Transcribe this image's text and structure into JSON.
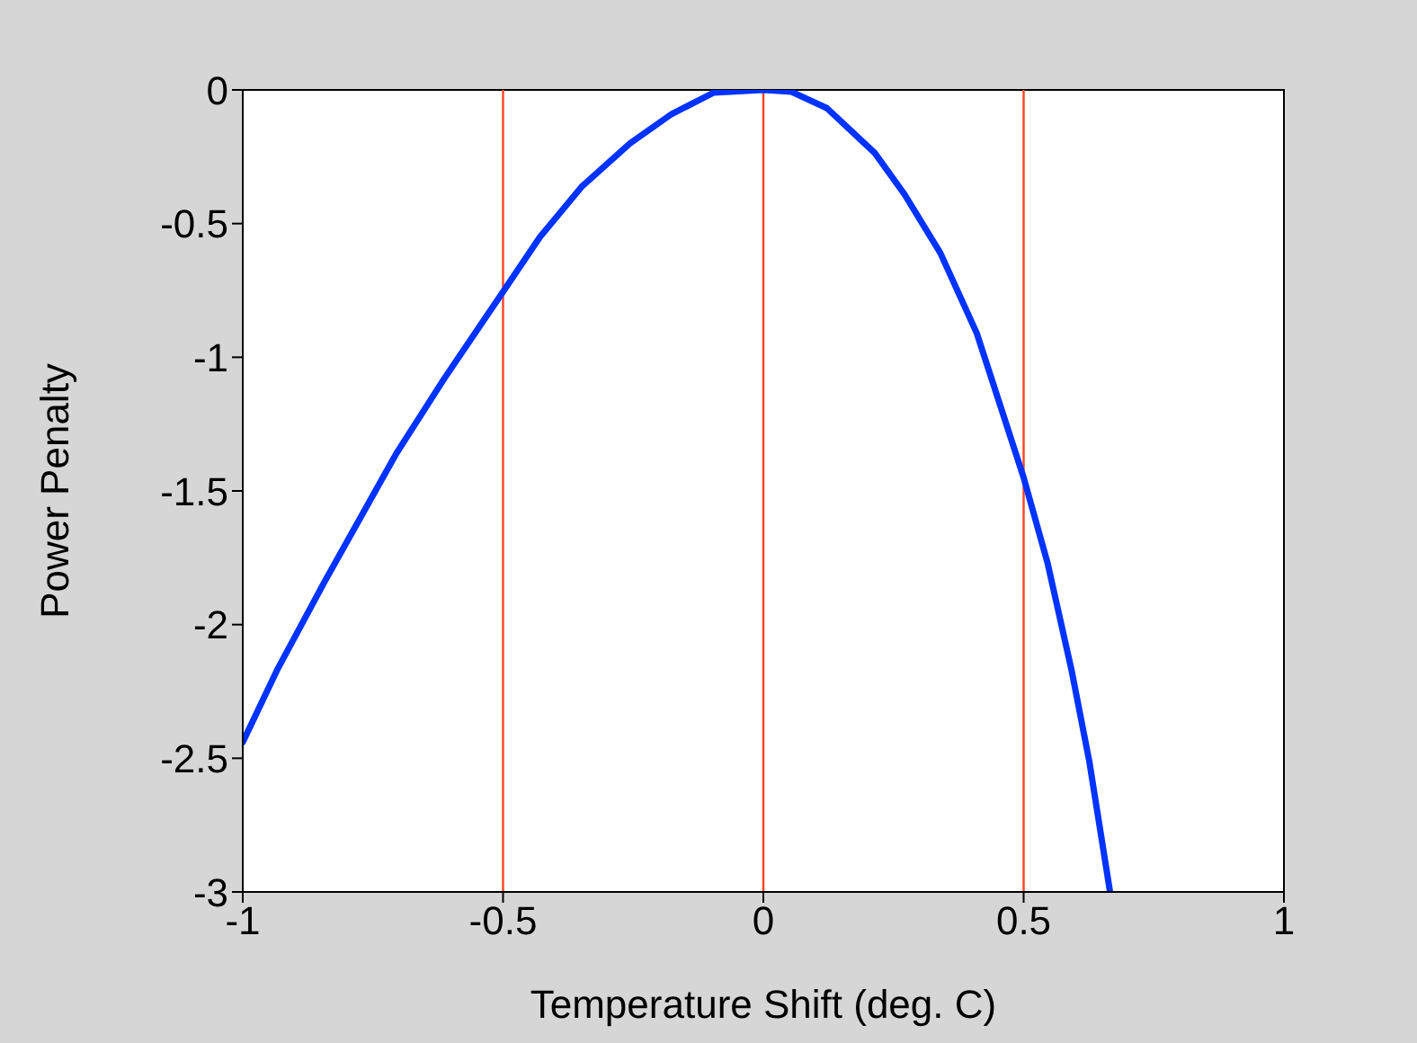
{
  "chart_data": {
    "type": "line",
    "xlabel": "Temperature Shift (deg. C)",
    "ylabel": "Power Penalty",
    "xlim": [
      -1,
      1
    ],
    "xticks": [
      -1,
      -0.5,
      0,
      0.5,
      1
    ],
    "ylim": [
      -3,
      0
    ],
    "yticks": [
      -3,
      -2.5,
      -2,
      -1.5,
      -1,
      -0.5,
      0
    ],
    "marker": "none",
    "line_style": "solid",
    "series": [
      {
        "color": "#0033ff",
        "x": [
          -1,
          -0.934,
          -0.843,
          -0.774,
          -0.705,
          -0.613,
          -0.5,
          -0.429,
          -0.348,
          -0.256,
          -0.176,
          -0.095,
          0,
          0.054,
          0.122,
          0.214,
          0.271,
          0.34,
          0.41,
          0.455,
          0.5,
          0.546,
          0.592,
          0.626,
          0.666
        ],
        "values": [
          -2.44,
          -2.17,
          -1.84,
          -1.6,
          -1.36,
          -1.08,
          -0.755,
          -0.55,
          -0.36,
          -0.2,
          -0.09,
          -0.01,
          0,
          -0.007,
          -0.068,
          -0.236,
          -0.39,
          -0.61,
          -0.91,
          -1.18,
          -1.45,
          -1.77,
          -2.17,
          -2.51,
          -3
        ]
      }
    ],
    "ref_lines": [
      {
        "axis": "x",
        "value": -0.5,
        "color": "#ff4422"
      },
      {
        "axis": "x",
        "value": 0,
        "color": "#ff4422"
      },
      {
        "axis": "x",
        "value": 0.5,
        "color": "#ff4422"
      }
    ]
  }
}
